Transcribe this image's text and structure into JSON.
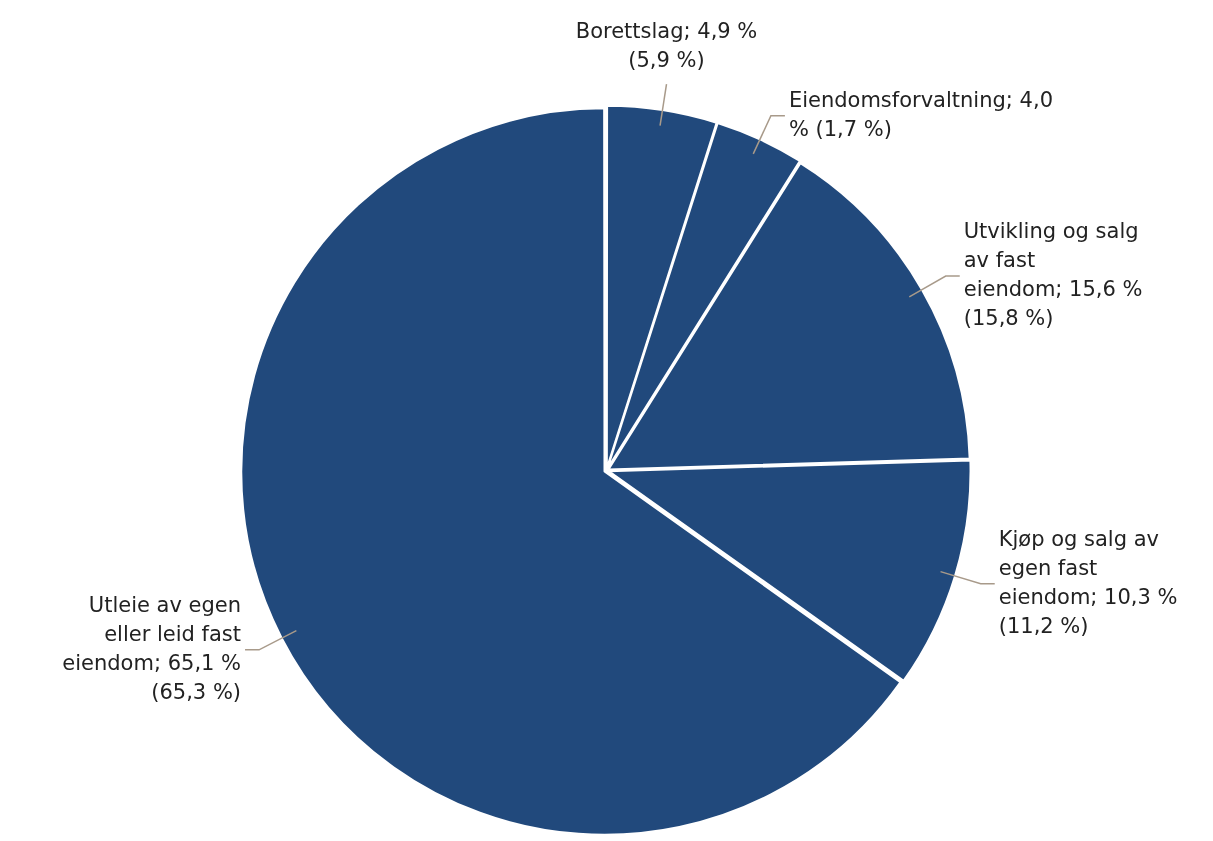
{
  "chart_data": {
    "type": "pie",
    "categories": [
      "Borettslag",
      "Eiendomsforvaltning",
      "Utvikling og salg av fast eiendom",
      "Kjøp og salg av egen fast eiendom",
      "Utleie av egen eller leid fast eiendom"
    ],
    "values": [
      4.9,
      4.0,
      15.6,
      10.3,
      65.1
    ],
    "value_labels": [
      "4,9 % (5,9 %)",
      "4,0 % (1,7 %)",
      "15,6 % (15,8 %)",
      "10,3 % (11,2 %)",
      "65,1 % (65,3 %)"
    ],
    "colors": [
      "#21497c",
      "#21497c",
      "#21497c",
      "#21497c",
      "#21497c"
    ],
    "legend": false
  }
}
